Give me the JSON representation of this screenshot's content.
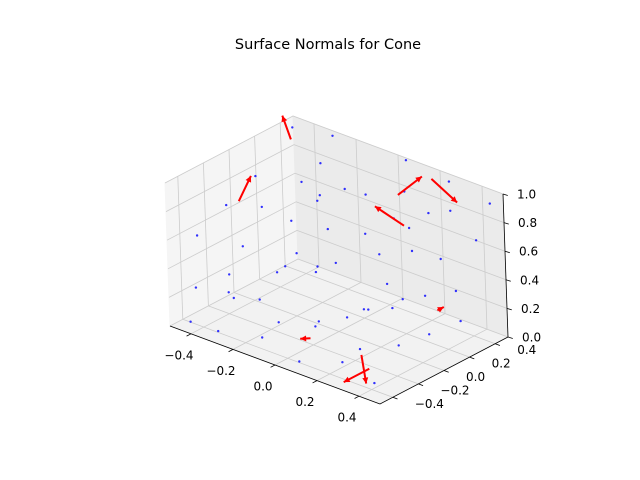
{
  "chart_data": {
    "type": "scatter",
    "title": "Surface Normals for Cone",
    "xlabel": "",
    "ylabel": "",
    "zlabel": "",
    "xlim": [
      -0.5,
      0.5
    ],
    "ylim": [
      -0.5,
      0.5
    ],
    "zlim": [
      0.0,
      1.0
    ],
    "x_ticks": [
      -0.4,
      -0.2,
      0.0,
      0.2,
      0.4
    ],
    "x_tick_labels": [
      "−0.4",
      "−0.2",
      "0.0",
      "0.2",
      "0.4"
    ],
    "y_ticks": [
      -0.4,
      -0.2,
      0.0,
      0.2,
      0.4
    ],
    "y_tick_labels": [
      "−0.4",
      "−0.2",
      "0.0",
      "0.2",
      "0.4"
    ],
    "z_ticks": [
      0.0,
      0.2,
      0.4,
      0.6,
      0.8,
      1.0
    ],
    "z_tick_labels": [
      "0.0",
      "0.2",
      "0.4",
      "0.6",
      "0.8",
      "1.0"
    ],
    "grid": true,
    "colors": {
      "points": "#0000ff",
      "normals": "#ff0000",
      "pane": "#f2f2f2",
      "grid": "#cccccc"
    },
    "points": [
      {
        "x": -0.45,
        "y": -0.42,
        "z": 0.02
      },
      {
        "x": -0.3,
        "y": -0.45,
        "z": 0.05
      },
      {
        "x": -0.12,
        "y": -0.4,
        "z": 0.08
      },
      {
        "x": 0.08,
        "y": -0.44,
        "z": 0.04
      },
      {
        "x": 0.25,
        "y": -0.38,
        "z": 0.1
      },
      {
        "x": 0.42,
        "y": -0.41,
        "z": 0.06
      },
      {
        "x": -0.4,
        "y": -0.2,
        "z": 0.15
      },
      {
        "x": -0.22,
        "y": -0.25,
        "z": 0.22
      },
      {
        "x": 0.0,
        "y": -0.18,
        "z": 0.12
      },
      {
        "x": 0.18,
        "y": -0.22,
        "z": 0.3
      },
      {
        "x": 0.38,
        "y": -0.15,
        "z": 0.18
      },
      {
        "x": -0.45,
        "y": 0.0,
        "z": 0.35
      },
      {
        "x": -0.28,
        "y": 0.05,
        "z": 0.28
      },
      {
        "x": -0.08,
        "y": -0.02,
        "z": 0.42
      },
      {
        "x": 0.12,
        "y": 0.04,
        "z": 0.2
      },
      {
        "x": 0.3,
        "y": 0.02,
        "z": 0.38
      },
      {
        "x": 0.46,
        "y": -0.04,
        "z": 0.25
      },
      {
        "x": -0.35,
        "y": 0.22,
        "z": 0.48
      },
      {
        "x": -0.15,
        "y": 0.18,
        "z": 0.55
      },
      {
        "x": 0.05,
        "y": 0.25,
        "z": 0.45
      },
      {
        "x": 0.24,
        "y": 0.2,
        "z": 0.6
      },
      {
        "x": 0.42,
        "y": 0.24,
        "z": 0.4
      },
      {
        "x": -0.42,
        "y": 0.42,
        "z": 0.62
      },
      {
        "x": -0.2,
        "y": 0.4,
        "z": 0.7
      },
      {
        "x": 0.0,
        "y": 0.45,
        "z": 0.58
      },
      {
        "x": 0.2,
        "y": 0.4,
        "z": 0.75
      },
      {
        "x": 0.4,
        "y": 0.44,
        "z": 0.65
      },
      {
        "x": -0.48,
        "y": -0.3,
        "z": 0.55
      },
      {
        "x": -0.46,
        "y": -0.1,
        "z": 0.68
      },
      {
        "x": -0.44,
        "y": 0.1,
        "z": 0.8
      },
      {
        "x": -0.3,
        "y": -0.35,
        "z": 0.4
      },
      {
        "x": -0.1,
        "y": -0.3,
        "z": 0.5
      },
      {
        "x": 0.1,
        "y": -0.32,
        "z": 0.62
      },
      {
        "x": 0.3,
        "y": -0.28,
        "z": 0.45
      },
      {
        "x": 0.45,
        "y": -0.3,
        "z": 0.55
      },
      {
        "x": -0.32,
        "y": -0.05,
        "z": 0.72
      },
      {
        "x": -0.12,
        "y": 0.08,
        "z": 0.85
      },
      {
        "x": 0.08,
        "y": 0.1,
        "z": 0.68
      },
      {
        "x": 0.28,
        "y": 0.12,
        "z": 0.82
      },
      {
        "x": 0.44,
        "y": 0.1,
        "z": 0.7
      },
      {
        "x": -0.25,
        "y": 0.3,
        "z": 0.9
      },
      {
        "x": -0.05,
        "y": 0.32,
        "z": 0.78
      },
      {
        "x": 0.15,
        "y": 0.3,
        "z": 0.92
      },
      {
        "x": 0.35,
        "y": 0.33,
        "z": 0.88
      },
      {
        "x": -0.4,
        "y": -0.45,
        "z": 0.3
      },
      {
        "x": -0.2,
        "y": -0.48,
        "z": 0.35
      },
      {
        "x": 0.0,
        "y": -0.46,
        "z": 0.28
      },
      {
        "x": 0.2,
        "y": -0.47,
        "z": 0.4
      },
      {
        "x": 0.4,
        "y": -0.48,
        "z": 0.32
      },
      {
        "x": -0.38,
        "y": 0.3,
        "z": 0.2
      },
      {
        "x": -0.18,
        "y": 0.28,
        "z": 0.25
      },
      {
        "x": 0.02,
        "y": 0.35,
        "z": 0.18
      },
      {
        "x": 0.22,
        "y": 0.32,
        "z": 0.22
      },
      {
        "x": 0.4,
        "y": 0.3,
        "z": 0.15
      },
      {
        "x": -0.48,
        "y": 0.46,
        "z": 0.95
      },
      {
        "x": -0.3,
        "y": 0.48,
        "z": 0.98
      },
      {
        "x": 0.05,
        "y": 0.48,
        "z": 1.0
      },
      {
        "x": 0.26,
        "y": 0.47,
        "z": 0.97
      },
      {
        "x": 0.46,
        "y": 0.46,
        "z": 0.93
      },
      {
        "x": -0.02,
        "y": -0.1,
        "z": 0.95
      }
    ],
    "normals": [
      {
        "x": -0.43,
        "y": -0.05,
        "z": 0.7,
        "u": 0.0,
        "v": 0.1,
        "w": 0.13
      },
      {
        "x": -0.42,
        "y": 0.35,
        "z": 0.95,
        "u": -0.05,
        "v": 0.02,
        "w": 0.13
      },
      {
        "x": 0.15,
        "y": 0.25,
        "z": 0.92,
        "u": -0.07,
        "v": 0.3,
        "w": -0.05
      },
      {
        "x": 0.22,
        "y": 0.4,
        "z": 1.0,
        "u": 0.12,
        "v": 0.0,
        "w": -0.1
      },
      {
        "x": 0.3,
        "y": 0.05,
        "z": 0.88,
        "u": -0.2,
        "v": 0.1,
        "w": -0.02
      },
      {
        "x": 0.05,
        "y": -0.3,
        "z": 0.12,
        "u": -0.05,
        "v": 0.0,
        "w": -0.03
      },
      {
        "x": 0.28,
        "y": -0.28,
        "z": 0.12,
        "u": 0.05,
        "v": -0.05,
        "w": -0.15
      },
      {
        "x": 0.36,
        "y": -0.35,
        "z": 0.1,
        "u": 0.0,
        "v": -0.2,
        "w": 0.0
      },
      {
        "x": 0.34,
        "y": 0.22,
        "z": 0.23,
        "u": 0.0,
        "v": 0.05,
        "w": 0.0
      }
    ]
  }
}
